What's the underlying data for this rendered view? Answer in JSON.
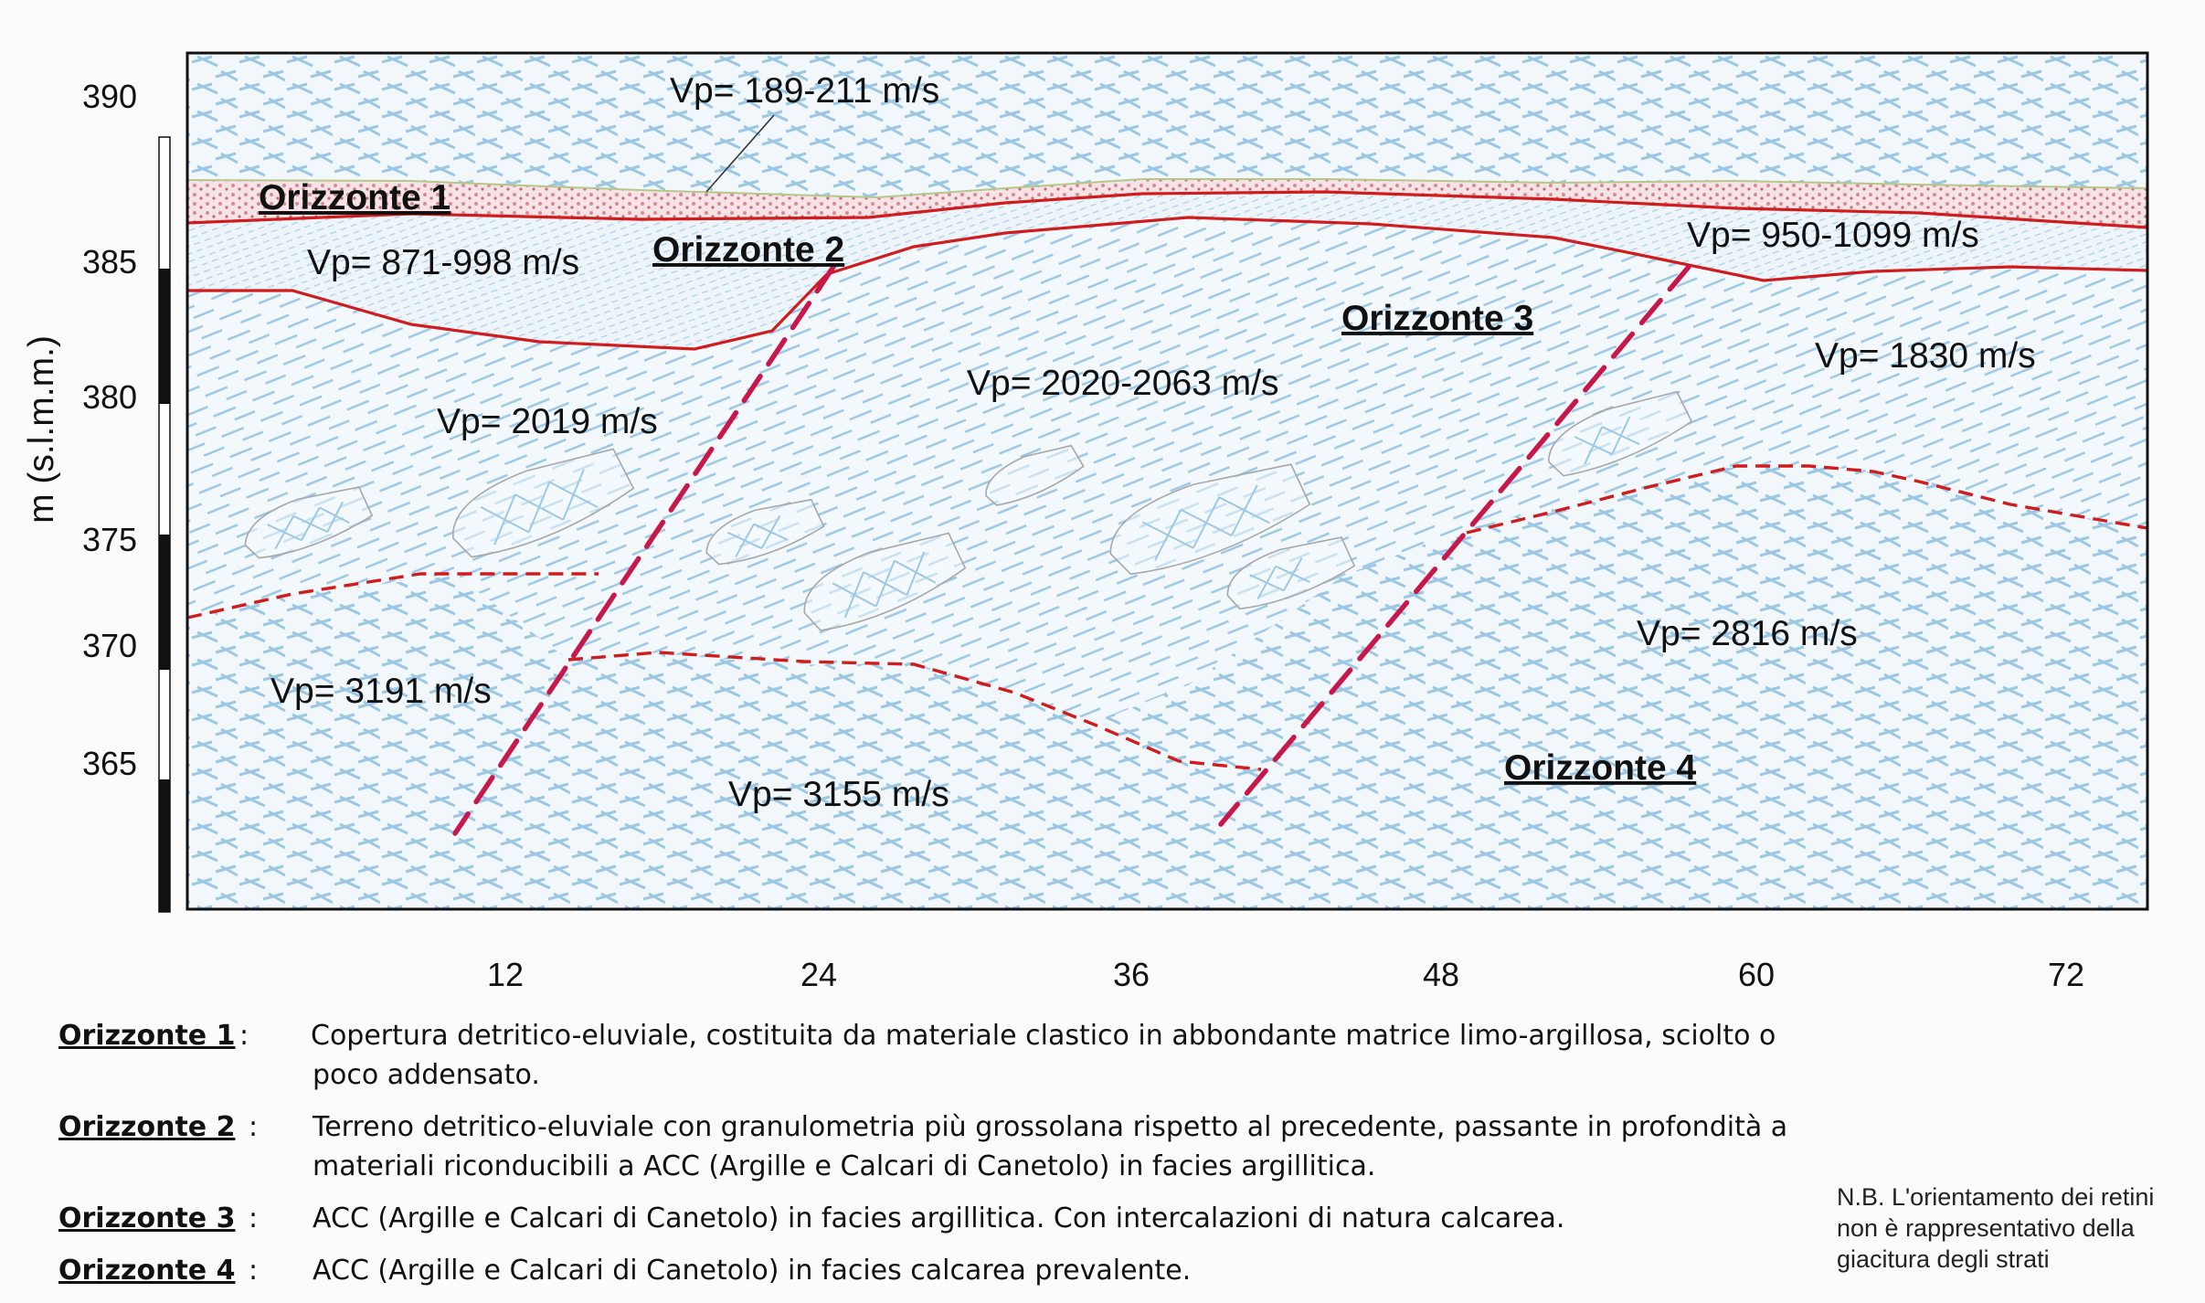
{
  "axes": {
    "y_label": "m (s.l.m.m.)",
    "y_ticks": [
      "390",
      "385",
      "380",
      "375",
      "370",
      "365"
    ],
    "x_ticks": [
      "12",
      "24",
      "36",
      "48",
      "60",
      "72"
    ]
  },
  "horizons": {
    "h1": "Orizzonte 1",
    "h2": "Orizzonte 2",
    "h3": "Orizzonte 3",
    "h4": "Orizzonte 4"
  },
  "velocities": {
    "v_top": "Vp= 189-211 m/s",
    "v_871": "Vp= 871-998 m/s",
    "v_950": "Vp= 950-1099 m/s",
    "v_2019": "Vp= 2019 m/s",
    "v_2020": "Vp= 2020-2063 m/s",
    "v_1830": "Vp= 1830 m/s",
    "v_2816": "Vp= 2816 m/s",
    "v_3191": "Vp= 3191 m/s",
    "v_3155": "Vp= 3155 m/s"
  },
  "legend": [
    {
      "key": "Orizzonte 1",
      "sep": ": ",
      "text": "Copertura detritico-eluviale, costituita da materiale clastico in abbondante matrice limo-argillosa, sciolto o poco addensato."
    },
    {
      "key": "Orizzonte 2",
      "sep": ": ",
      "text": "Terreno detritico-eluviale con granulometria più grossolana rispetto al precedente, passante in profondità a materiali riconducibili a ACC (Argille e Calcari di Canetolo) in facies argillitica."
    },
    {
      "key": "Orizzonte 3",
      "sep": ": ",
      "text": "ACC (Argille e Calcari di Canetolo) in facies argillitica. Con intercalazioni di natura calcarea."
    },
    {
      "key": "Orizzonte 4",
      "sep": ": ",
      "text": "ACC (Argille e Calcari di Canetolo) in facies calcarea prevalente."
    }
  ],
  "note": {
    "line1": "N.B. L'orientamento dei retini",
    "line2": "non è rappresentativo della",
    "line3": "giacitura degli strati"
  },
  "colors": {
    "boundary": "#d01c1c",
    "fault": "#c8174a",
    "hatch": "#9cc8e6",
    "topsoil": "#d98a96"
  }
}
